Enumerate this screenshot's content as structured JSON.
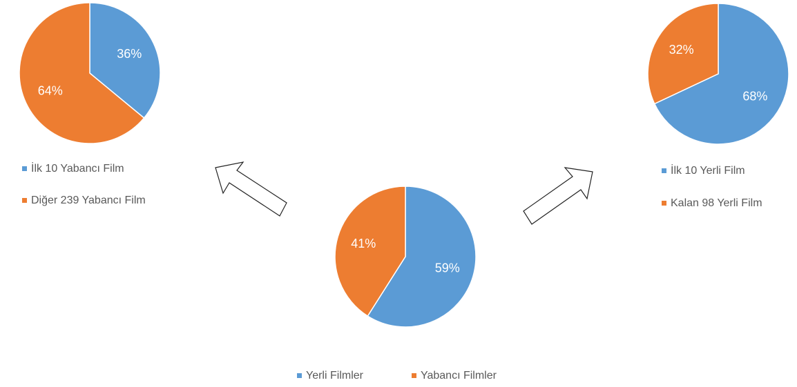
{
  "chart_data": [
    {
      "type": "pie",
      "categories": [
        "İlk 10 Yabancı Film",
        "Diğer 239  Yabancı Film"
      ],
      "values": [
        36,
        64
      ],
      "value_labels": [
        "36%",
        "64%"
      ],
      "colors": [
        "#5b9bd5",
        "#ed7d31"
      ],
      "legend": "bottom"
    },
    {
      "type": "pie",
      "categories": [
        "Yerli Filmler",
        "Yabancı Filmler"
      ],
      "values": [
        59,
        41
      ],
      "value_labels": [
        "59%",
        "41%"
      ],
      "colors": [
        "#5b9bd5",
        "#ed7d31"
      ],
      "legend": "bottom"
    },
    {
      "type": "pie",
      "categories": [
        "İlk 10 Yerli Film",
        "Kalan 98 Yerli Film"
      ],
      "values": [
        68,
        32
      ],
      "value_labels": [
        "68%",
        "32%"
      ],
      "colors": [
        "#5b9bd5",
        "#ed7d31"
      ],
      "legend": "bottom"
    }
  ]
}
